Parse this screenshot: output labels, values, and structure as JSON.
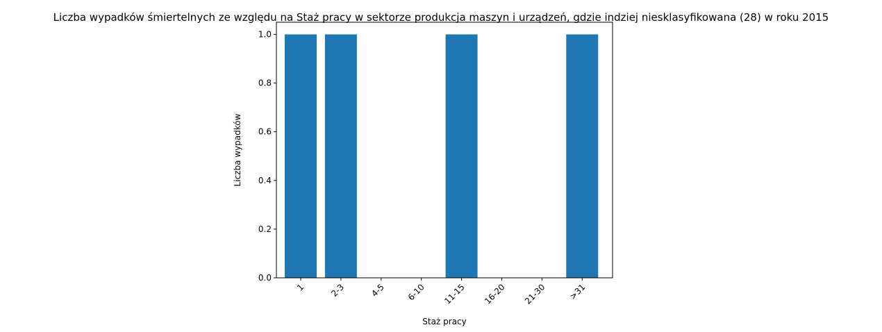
{
  "chart_data": {
    "type": "bar",
    "title": "Liczba wypadków śmiertelnych ze względu na Staż pracy w sektorze produkcja maszyn i urządzeń, gdzie indziej niesklasyfikowana (28)  w roku 2015",
    "xlabel": "Staż pracy",
    "ylabel": "Liczba wypadków",
    "categories": [
      "1",
      "2-3",
      "4-5",
      "6-10",
      "11-15",
      "16-20",
      "21-30",
      ">31"
    ],
    "values": [
      1,
      1,
      0,
      0,
      1,
      0,
      0,
      1
    ],
    "ylim": [
      0,
      1.05
    ],
    "yticks": [
      "0.0",
      "0.2",
      "0.4",
      "0.6",
      "0.8",
      "1.0"
    ],
    "grid": false,
    "bar_color": "#1f77b4"
  }
}
